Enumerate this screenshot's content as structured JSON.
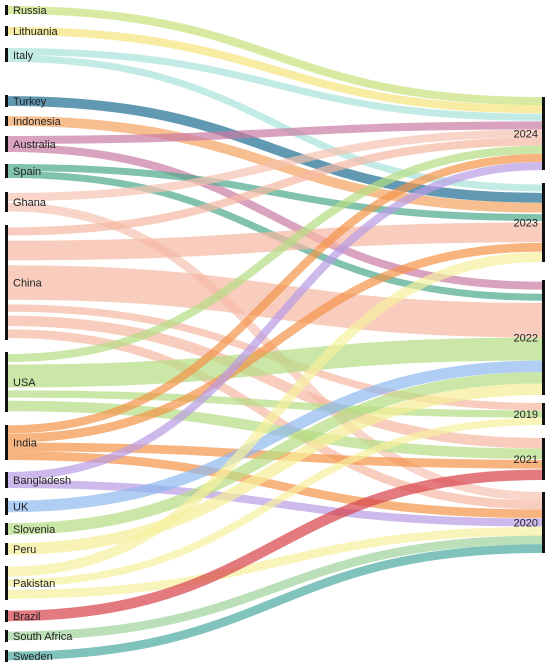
{
  "diagram": {
    "type": "sankey",
    "sources": [
      {
        "id": "russia",
        "label": "Russia"
      },
      {
        "id": "lithuania",
        "label": "Lithuania"
      },
      {
        "id": "italy",
        "label": "Italy"
      },
      {
        "id": "turkey",
        "label": "Turkey"
      },
      {
        "id": "indonesia",
        "label": "Indonesia"
      },
      {
        "id": "australia",
        "label": "Australia"
      },
      {
        "id": "spain",
        "label": "Spain"
      },
      {
        "id": "ghana",
        "label": "Ghana"
      },
      {
        "id": "china",
        "label": "China"
      },
      {
        "id": "usa",
        "label": "USA"
      },
      {
        "id": "india",
        "label": "India"
      },
      {
        "id": "bangladesh",
        "label": "Bangladesh"
      },
      {
        "id": "uk",
        "label": "UK"
      },
      {
        "id": "slovenia",
        "label": "Slovenia"
      },
      {
        "id": "peru",
        "label": "Peru"
      },
      {
        "id": "pakistan",
        "label": "Pakistan"
      },
      {
        "id": "brazil",
        "label": "Brazil"
      },
      {
        "id": "south_africa",
        "label": "South Africa"
      },
      {
        "id": "sweden",
        "label": "Sweden"
      }
    ],
    "targets": [
      {
        "id": "y2024",
        "label": "2024"
      },
      {
        "id": "y2023",
        "label": "2023"
      },
      {
        "id": "y2022",
        "label": "2022"
      },
      {
        "id": "y2019",
        "label": "2019"
      },
      {
        "id": "y2021",
        "label": "2021"
      },
      {
        "id": "y2020",
        "label": "2020"
      }
    ],
    "links": [
      {
        "source": "russia",
        "target": "y2024",
        "value": 1,
        "color": "#c8e07a"
      },
      {
        "source": "lithuania",
        "target": "y2024",
        "value": 1,
        "color": "#f5e37a"
      },
      {
        "source": "italy",
        "target": "y2024",
        "value": 1,
        "color": "#a8e3dc"
      },
      {
        "source": "italy",
        "target": "y2023",
        "value": 1,
        "color": "#a8e3dc"
      },
      {
        "source": "turkey",
        "target": "y2023",
        "value": 1,
        "color": "#1f6e91"
      },
      {
        "source": "indonesia",
        "target": "y2023",
        "value": 1,
        "color": "#f4a261"
      },
      {
        "source": "australia",
        "target": "y2024",
        "value": 1,
        "color": "#c97aa3"
      },
      {
        "source": "australia",
        "target": "y2022",
        "value": 1,
        "color": "#c97aa3"
      },
      {
        "source": "spain",
        "target": "y2023",
        "value": 1,
        "color": "#4aa88a"
      },
      {
        "source": "spain",
        "target": "y2022",
        "value": 1,
        "color": "#4aa88a"
      },
      {
        "source": "ghana",
        "target": "y2024",
        "value": 1,
        "color": "#f7c2b0"
      },
      {
        "source": "ghana",
        "target": "y2020",
        "value": 1,
        "color": "#f7c2b0"
      },
      {
        "source": "china",
        "target": "y2024",
        "value": 1,
        "color": "#f7b8a3"
      },
      {
        "source": "china",
        "target": "y2023",
        "value": 2,
        "color": "#f7b8a3"
      },
      {
        "source": "china",
        "target": "y2022",
        "value": 3,
        "color": "#f7b8a3"
      },
      {
        "source": "china",
        "target": "y2019",
        "value": 1,
        "color": "#f7b8a3"
      },
      {
        "source": "china",
        "target": "y2021",
        "value": 1,
        "color": "#f7b8a3"
      },
      {
        "source": "china",
        "target": "y2020",
        "value": 1,
        "color": "#f7b8a3"
      },
      {
        "source": "usa",
        "target": "y2024",
        "value": 1,
        "color": "#b5dd83"
      },
      {
        "source": "usa",
        "target": "y2022",
        "value": 2,
        "color": "#b5dd83"
      },
      {
        "source": "usa",
        "target": "y2019",
        "value": 1,
        "color": "#b5dd83"
      },
      {
        "source": "usa",
        "target": "y2021",
        "value": 1,
        "color": "#b5dd83"
      },
      {
        "source": "india",
        "target": "y2024",
        "value": 1,
        "color": "#f39449"
      },
      {
        "source": "india",
        "target": "y2023",
        "value": 1,
        "color": "#f39449"
      },
      {
        "source": "india",
        "target": "y2021",
        "value": 1,
        "color": "#f39449"
      },
      {
        "source": "india",
        "target": "y2020",
        "value": 1,
        "color": "#f39449"
      },
      {
        "source": "bangladesh",
        "target": "y2024",
        "value": 1,
        "color": "#b99be6"
      },
      {
        "source": "bangladesh",
        "target": "y2020",
        "value": 1,
        "color": "#b99be6"
      },
      {
        "source": "uk",
        "target": "y2022",
        "value": 1,
        "color": "#8fb8f0"
      },
      {
        "source": "slovenia",
        "target": "y2022",
        "value": 1,
        "color": "#b5dd83"
      },
      {
        "source": "peru",
        "target": "y2022",
        "value": 1,
        "color": "#f5ee95"
      },
      {
        "source": "pakistan",
        "target": "y2023",
        "value": 1,
        "color": "#f7ef9c"
      },
      {
        "source": "pakistan",
        "target": "y2019",
        "value": 1,
        "color": "#f7ef9c"
      },
      {
        "source": "pakistan",
        "target": "y2020",
        "value": 1,
        "color": "#f7ef9c"
      },
      {
        "source": "brazil",
        "target": "y2021",
        "value": 1,
        "color": "#d7424a"
      },
      {
        "source": "south_africa",
        "target": "y2020",
        "value": 1,
        "color": "#9ed19a"
      },
      {
        "source": "sweden",
        "target": "y2020",
        "value": 1,
        "color": "#4aa8a0"
      }
    ]
  }
}
